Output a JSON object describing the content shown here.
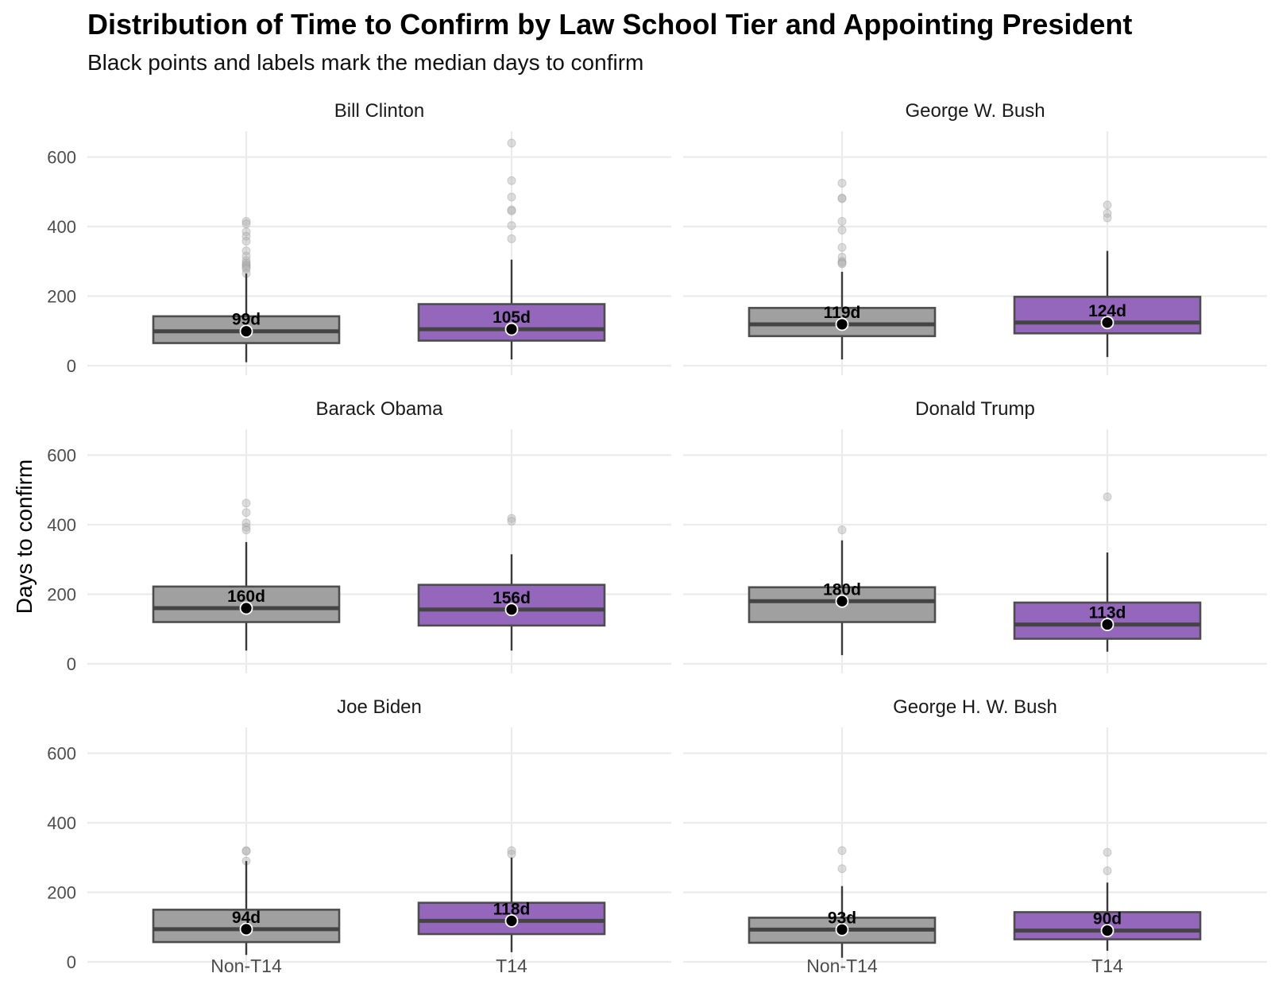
{
  "chart_data": {
    "type": "boxplot",
    "title": "Distribution of Time to Confirm by Law School Tier and Appointing President",
    "subtitle": "Black points and labels mark the median days to confirm",
    "ylabel": "Days to confirm",
    "xlabel": "",
    "ylim": [
      0,
      660
    ],
    "yticks": [
      0,
      200,
      400,
      600
    ],
    "categories": [
      "Non-T14",
      "T14"
    ],
    "colors": {
      "Non-T14": "#a0a0a0",
      "T14": "#9467bd",
      "box_stroke": "#4d4d4d",
      "median_point": "#000000",
      "outlier": "#b3b3b3"
    },
    "grid": true,
    "legend": "none",
    "panels": [
      {
        "president": "Bill Clinton",
        "boxes": [
          {
            "category": "Non-T14",
            "whisker_low": 10,
            "q1": 65,
            "median": 99,
            "q3": 142,
            "whisker_high": 265,
            "median_label": "99d",
            "outliers": [
              415,
              408,
              385,
              372,
              358,
              330,
              315,
              302,
              295,
              290,
              287,
              282,
              278,
              265
            ]
          },
          {
            "category": "T14",
            "whisker_low": 18,
            "q1": 72,
            "median": 105,
            "q3": 177,
            "whisker_high": 305,
            "median_label": "105d",
            "outliers": [
              640,
              532,
              485,
              448,
              445,
              403,
              365
            ]
          }
        ]
      },
      {
        "president": "George W. Bush",
        "boxes": [
          {
            "category": "Non-T14",
            "whisker_low": 18,
            "q1": 85,
            "median": 119,
            "q3": 166,
            "whisker_high": 270,
            "median_label": "119d",
            "outliers": [
              525,
              482,
              480,
              415,
              390,
              340,
              312,
              300,
              296,
              293
            ]
          },
          {
            "category": "T14",
            "whisker_low": 25,
            "q1": 93,
            "median": 124,
            "q3": 198,
            "whisker_high": 330,
            "median_label": "124d",
            "outliers": [
              462,
              438,
              425
            ]
          }
        ]
      },
      {
        "president": "Barack Obama",
        "boxes": [
          {
            "category": "Non-T14",
            "whisker_low": 38,
            "q1": 120,
            "median": 160,
            "q3": 222,
            "whisker_high": 350,
            "median_label": "160d",
            "outliers": [
              462,
              435,
              405,
              393,
              385
            ]
          },
          {
            "category": "T14",
            "whisker_low": 38,
            "q1": 110,
            "median": 156,
            "q3": 227,
            "whisker_high": 315,
            "median_label": "156d",
            "outliers": [
              418,
              410
            ]
          }
        ]
      },
      {
        "president": "Donald Trump",
        "boxes": [
          {
            "category": "Non-T14",
            "whisker_low": 25,
            "q1": 120,
            "median": 180,
            "q3": 220,
            "whisker_high": 355,
            "median_label": "180d",
            "outliers": [
              385
            ]
          },
          {
            "category": "T14",
            "whisker_low": 35,
            "q1": 72,
            "median": 113,
            "q3": 176,
            "whisker_high": 320,
            "median_label": "113d",
            "outliers": [
              480
            ]
          }
        ]
      },
      {
        "president": "Joe Biden",
        "boxes": [
          {
            "category": "Non-T14",
            "whisker_low": 20,
            "q1": 57,
            "median": 94,
            "q3": 150,
            "whisker_high": 290,
            "median_label": "94d",
            "outliers": [
              320,
              318,
              290
            ]
          },
          {
            "category": "T14",
            "whisker_low": 28,
            "q1": 80,
            "median": 118,
            "q3": 170,
            "whisker_high": 300,
            "median_label": "118d",
            "outliers": [
              320,
              310
            ]
          }
        ]
      },
      {
        "president": "George H. W. Bush",
        "boxes": [
          {
            "category": "Non-T14",
            "whisker_low": 12,
            "q1": 55,
            "median": 93,
            "q3": 127,
            "whisker_high": 218,
            "median_label": "93d",
            "outliers": [
              320,
              268
            ]
          },
          {
            "category": "T14",
            "whisker_low": 32,
            "q1": 65,
            "median": 90,
            "q3": 143,
            "whisker_high": 228,
            "median_label": "90d",
            "outliers": [
              315,
              262
            ]
          }
        ]
      }
    ]
  }
}
